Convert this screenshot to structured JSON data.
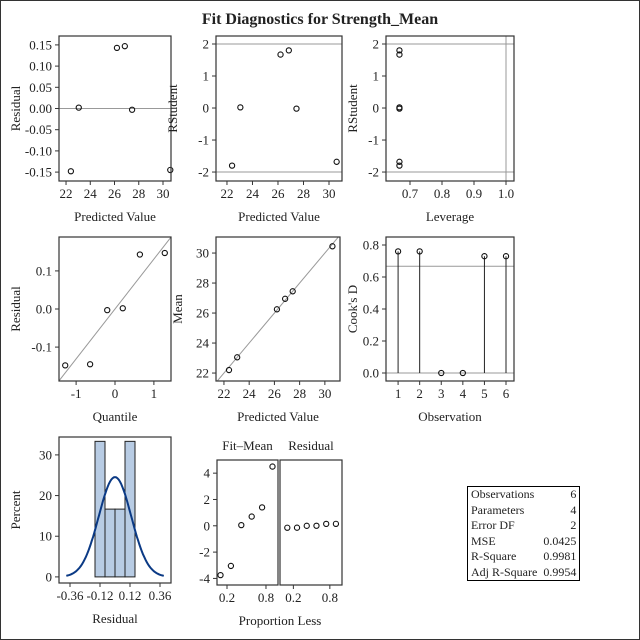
{
  "title": "Fit Diagnostics for Strength_Mean",
  "chart_data": [
    {
      "id": "p1",
      "type": "scatter",
      "xlabel": "Predicted Value",
      "ylabel": "Residual",
      "xlim": [
        21.42,
        30.66
      ],
      "ylim": [
        -0.171,
        0.171
      ],
      "xticks": [
        22,
        24,
        26,
        28,
        30
      ],
      "yticks": [
        -0.15,
        -0.1,
        -0.05,
        0.0,
        0.05,
        0.1,
        0.15
      ],
      "ydec": 2,
      "x": [
        22.4,
        23.05,
        26.2,
        26.85,
        27.45,
        30.6
      ],
      "y": [
        -0.148,
        0.002,
        0.143,
        0.147,
        -0.003,
        -0.145
      ],
      "hlines": [
        0
      ]
    },
    {
      "id": "p2",
      "type": "scatter",
      "xlabel": "Predicted Value",
      "ylabel": "RStudent",
      "xlim": [
        21.14,
        31.02
      ],
      "ylim": [
        -2.28,
        2.25
      ],
      "xticks": [
        22,
        24,
        26,
        28,
        30
      ],
      "yticks": [
        -2,
        -1,
        0,
        1,
        2
      ],
      "ydec": 0,
      "x": [
        22.4,
        23.05,
        26.2,
        26.85,
        27.45,
        30.6
      ],
      "y": [
        -1.8,
        0.02,
        1.67,
        1.8,
        -0.02,
        -1.68
      ],
      "hlines": [
        -2,
        2
      ]
    },
    {
      "id": "p3",
      "type": "scatter",
      "xlabel": "Leverage",
      "ylabel": "RStudent",
      "xlim": [
        0.625,
        1.025
      ],
      "ylim": [
        -2.28,
        2.25
      ],
      "xticks": [
        0.7,
        0.8,
        0.9,
        1.0
      ],
      "xdec": 1,
      "yticks": [
        -2,
        -1,
        0,
        1,
        2
      ],
      "ydec": 0,
      "x": [
        0.667,
        0.667,
        0.667,
        0.667,
        0.667,
        0.667
      ],
      "y": [
        -1.8,
        0.02,
        1.67,
        1.8,
        -0.02,
        -1.68
      ],
      "hlines": [
        -2,
        2
      ],
      "vlines": [
        1.0
      ]
    },
    {
      "id": "p4",
      "type": "scatter",
      "xlabel": "Quantile",
      "ylabel": "Residual",
      "xlim": [
        -1.44,
        1.44
      ],
      "ylim": [
        -0.189,
        0.189
      ],
      "xticks": [
        -1,
        0,
        1
      ],
      "yticks": [
        -0.1,
        0.0,
        0.1
      ],
      "ydec": 1,
      "x": [
        -1.28,
        -0.64,
        -0.2,
        0.2,
        0.64,
        1.28
      ],
      "y": [
        -0.148,
        -0.145,
        -0.003,
        0.002,
        0.143,
        0.147
      ],
      "refline": {
        "slope": 0.131,
        "intercept": 0
      }
    },
    {
      "id": "p5",
      "type": "scatter",
      "xlabel": "Predicted Value",
      "ylabel": "Mean",
      "xlim": [
        21.37,
        31.2
      ],
      "ylim": [
        21.47,
        31.07
      ],
      "xticks": [
        22,
        24,
        26,
        28,
        30
      ],
      "yticks": [
        22,
        24,
        26,
        28,
        30
      ],
      "ydec": 0,
      "x": [
        22.4,
        23.05,
        26.2,
        26.85,
        27.45,
        30.6
      ],
      "y": [
        22.2,
        23.05,
        26.25,
        26.95,
        27.45,
        30.45
      ],
      "refline": {
        "slope": 1,
        "intercept": 0
      }
    },
    {
      "id": "p6",
      "type": "needle",
      "xlabel": "Observation",
      "ylabel": "Cook's D",
      "xlim": [
        0.44,
        6.37
      ],
      "ylim": [
        -0.05,
        0.85
      ],
      "xticks": [
        1,
        2,
        3,
        4,
        5,
        6
      ],
      "yticks": [
        0.0,
        0.2,
        0.4,
        0.6,
        0.8
      ],
      "ydec": 1,
      "x": [
        1,
        2,
        3,
        4,
        5,
        6
      ],
      "y": [
        0.76,
        0.76,
        0.0,
        0.0,
        0.73,
        0.73
      ],
      "hlines": [
        0.667,
        0
      ]
    },
    {
      "id": "p7",
      "type": "bar",
      "xlabel": "Residual",
      "ylabel": "Percent",
      "xlim": [
        -0.448,
        0.448
      ],
      "ylim": [
        -1.5,
        34.4
      ],
      "xticks": [
        -0.36,
        -0.12,
        0.12,
        0.36
      ],
      "xdec": 2,
      "yticks": [
        0,
        10,
        20,
        30
      ],
      "ydec": 0,
      "bins": [
        [
          -0.16,
          -0.08
        ],
        [
          -0.08,
          0
        ],
        [
          0,
          0.08
        ],
        [
          0.08,
          0.16
        ]
      ],
      "values": [
        33.33,
        16.67,
        16.67,
        33.33
      ],
      "normal_curve": {
        "mean": 0,
        "sd": 0.13,
        "binwidth": 0.08,
        "range": [
          -0.39,
          0.39
        ]
      }
    },
    {
      "id": "p8",
      "type": "scatter",
      "xlabel": "Proportion Less",
      "ylabel": "",
      "panel_title": "Fit–Mean",
      "xlim": [
        0.046,
        0.985
      ],
      "ylim": [
        -4.5,
        5.0
      ],
      "xticks": [
        0.2,
        0.8
      ],
      "xdec": 1,
      "yticks": [
        -4,
        -2,
        0,
        2,
        4
      ],
      "ydec": 0,
      "x": [
        0.1,
        0.26,
        0.42,
        0.58,
        0.74,
        0.9
      ],
      "y": [
        -3.75,
        -3.05,
        0.05,
        0.7,
        1.4,
        4.5
      ]
    },
    {
      "id": "p9",
      "type": "scatter",
      "xlabel": "",
      "ylabel": "",
      "panel_title": "Residual",
      "xlim": [
        -0.02,
        1.0
      ],
      "ylim": [
        -4.5,
        5.0
      ],
      "xticks": [
        0.2,
        0.8
      ],
      "xdec": 1,
      "yticks": [],
      "x": [
        0.1,
        0.26,
        0.42,
        0.58,
        0.74,
        0.9
      ],
      "y": [
        -0.148,
        -0.145,
        -0.003,
        0.002,
        0.143,
        0.147
      ]
    }
  ],
  "stats": [
    {
      "label": "Observations",
      "value": "6"
    },
    {
      "label": "Parameters",
      "value": "4"
    },
    {
      "label": "Error DF",
      "value": "2"
    },
    {
      "label": "MSE",
      "value": "0.0425"
    },
    {
      "label": "R-Square",
      "value": "0.9981"
    },
    {
      "label": "Adj R-Square",
      "value": "0.9954"
    }
  ],
  "colors": {
    "bar_fill": "#b8cce4",
    "curve": "#0b3a85",
    "refline": "#999999",
    "axis": "#333333"
  }
}
